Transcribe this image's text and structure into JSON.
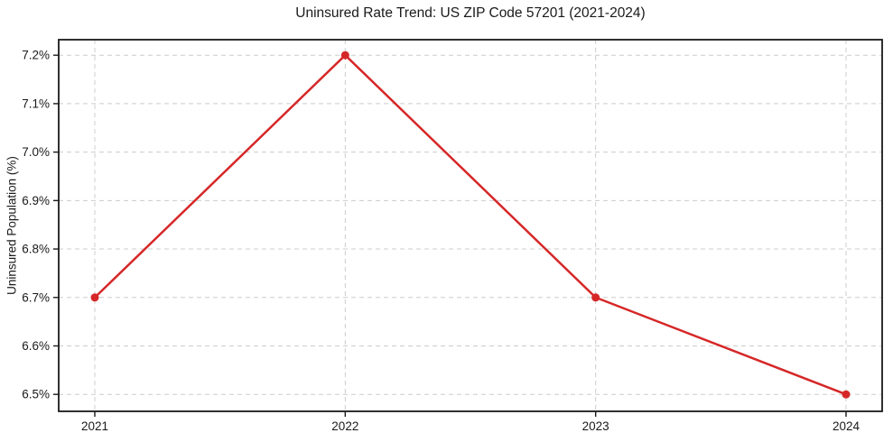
{
  "chart_data": {
    "type": "line",
    "title": "Uninsured Rate Trend: US ZIP Code 57201 (2021-2024)",
    "ylabel": "Uninsured Population (%)",
    "xlabel": "",
    "categories": [
      "2021",
      "2022",
      "2023",
      "2024"
    ],
    "values": [
      6.7,
      7.2,
      6.7,
      6.5
    ],
    "yticks": [
      {
        "value": 6.5,
        "label": "6.5%"
      },
      {
        "value": 6.6,
        "label": "6.6%"
      },
      {
        "value": 6.7,
        "label": "6.7%"
      },
      {
        "value": 6.8,
        "label": "6.8%"
      },
      {
        "value": 6.9,
        "label": "6.9%"
      },
      {
        "value": 7.0,
        "label": "7.0%"
      },
      {
        "value": 7.1,
        "label": "7.1%"
      },
      {
        "value": 7.2,
        "label": "7.2%"
      }
    ],
    "ylim": [
      6.465,
      7.232
    ],
    "grid": true,
    "grid_style": "dashed",
    "legend": "none",
    "colors": {
      "line": "#d62728",
      "marker": "#d62728",
      "grid": "#cccccc",
      "spine": "#1a1a1a",
      "text": "#1a1a1a",
      "background": "#ffffff"
    }
  }
}
